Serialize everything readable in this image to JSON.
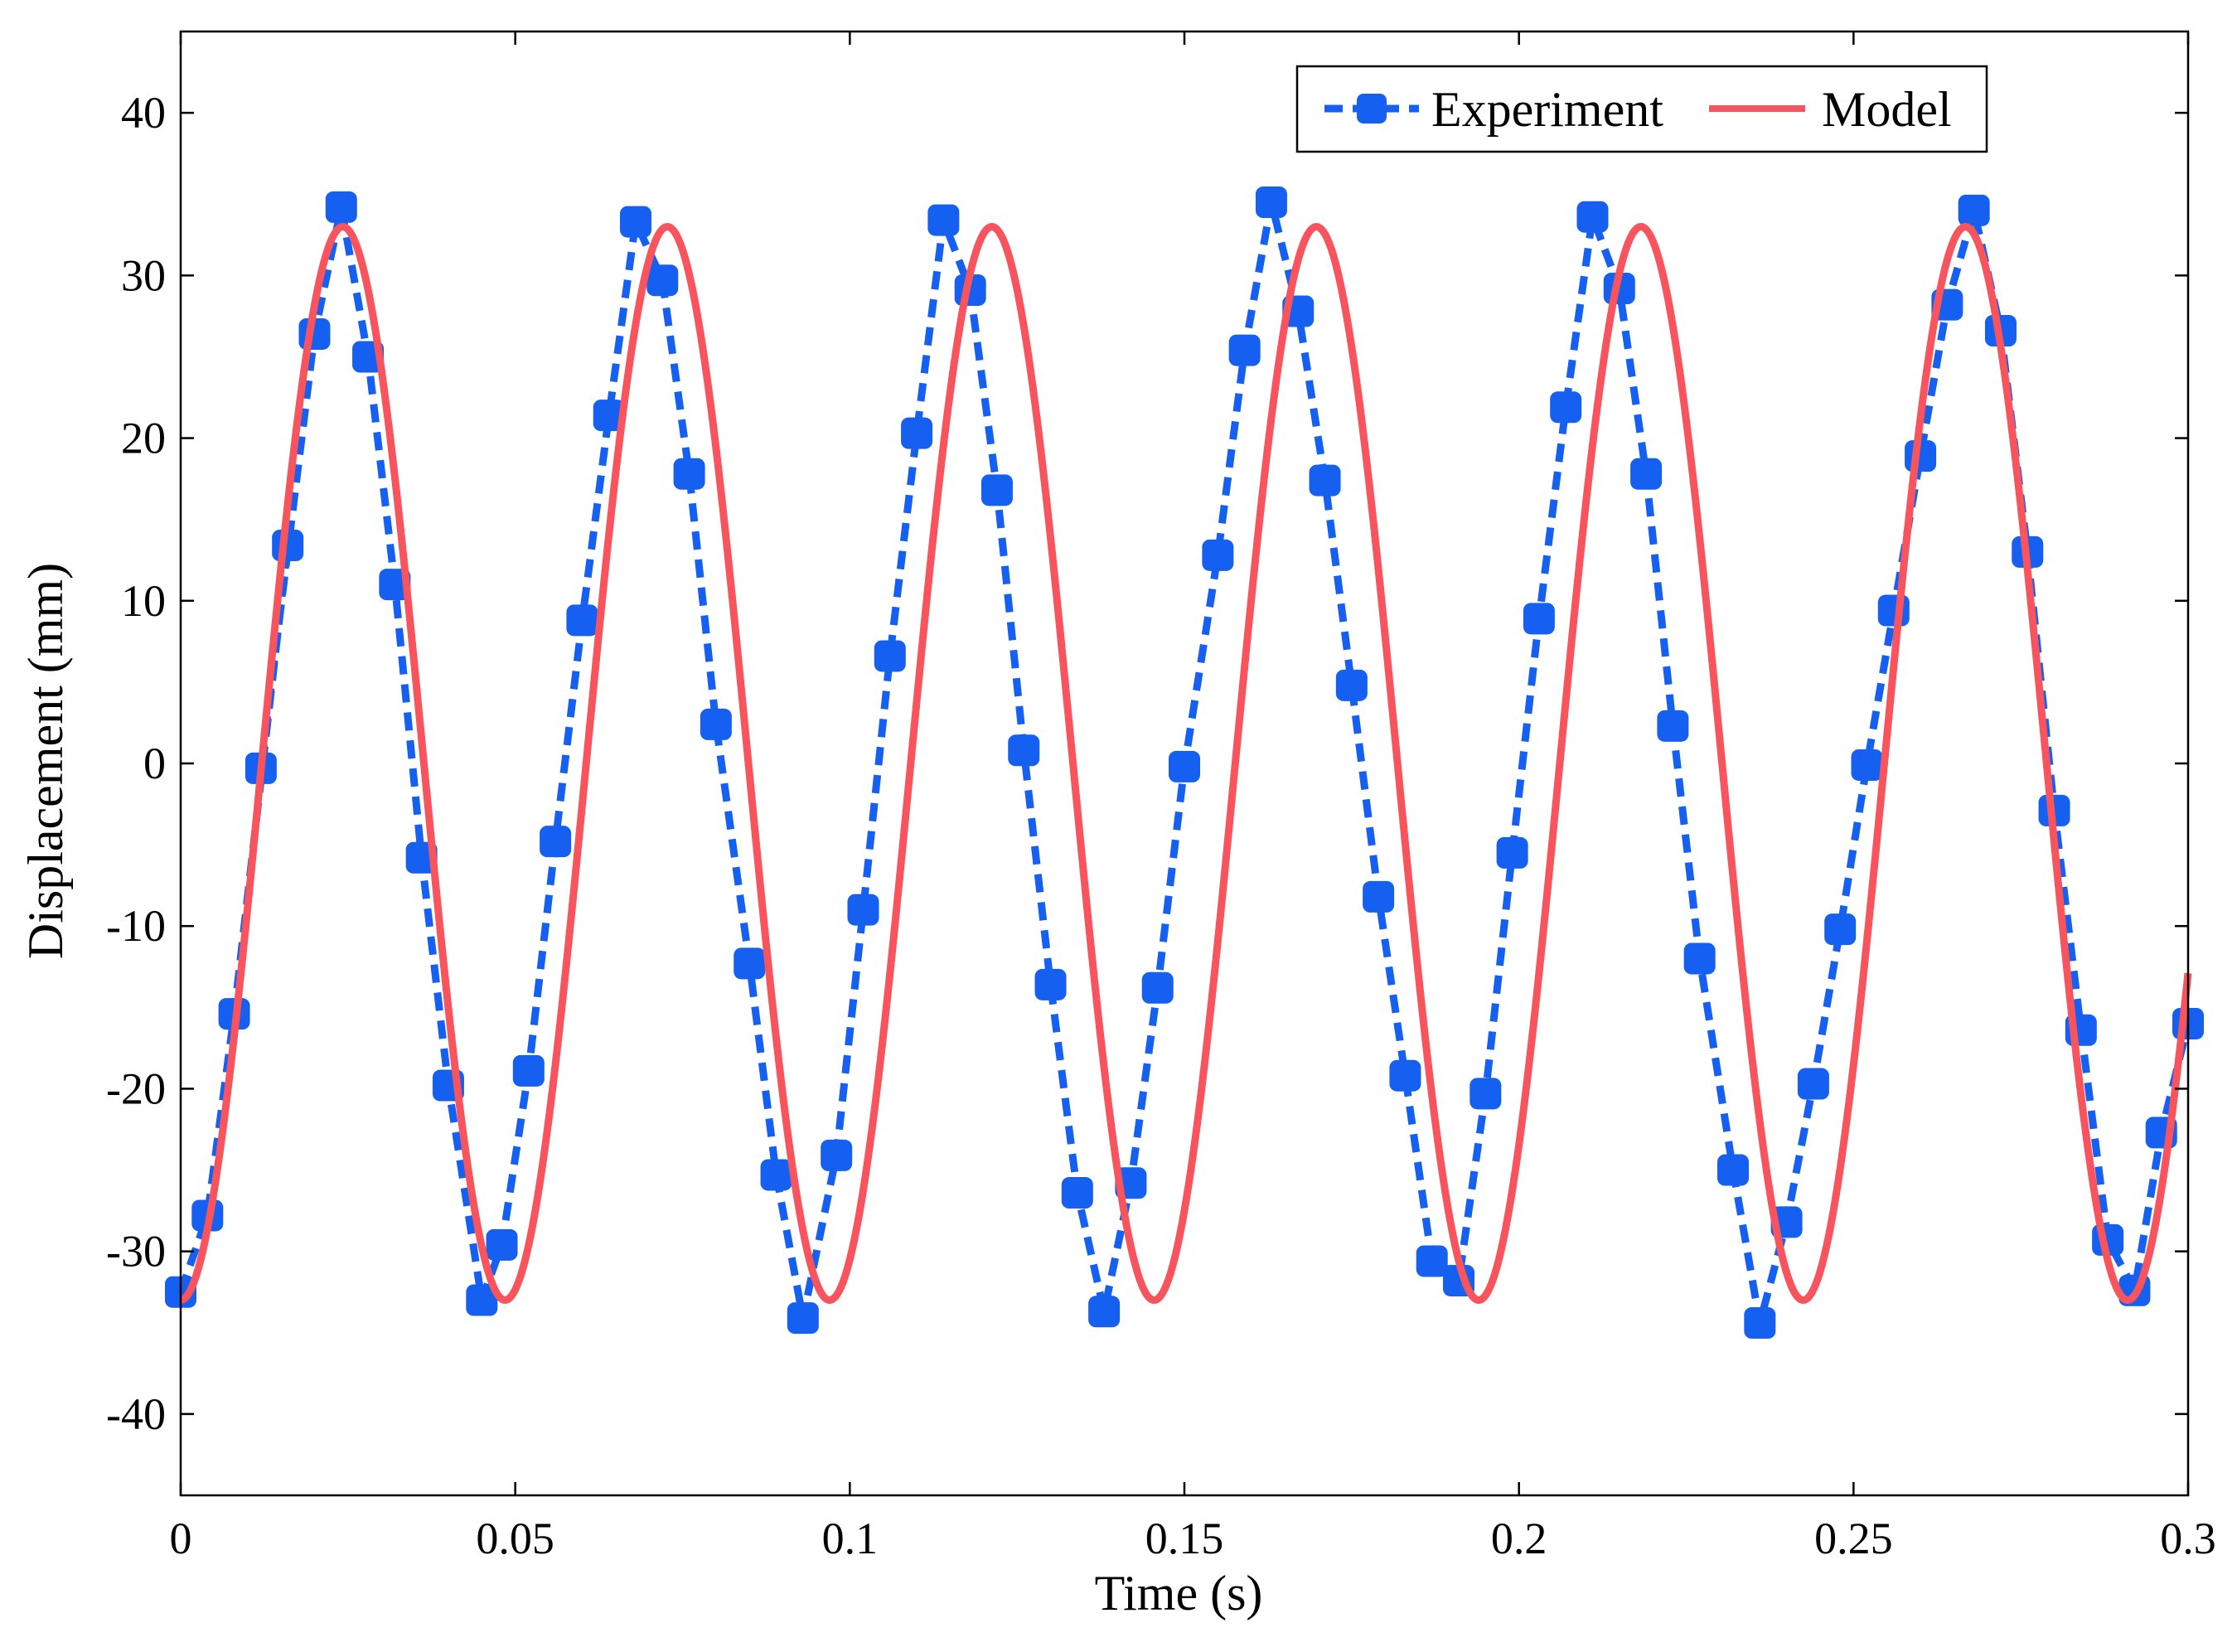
{
  "chart_data": {
    "type": "line",
    "xlabel": "Time (s)",
    "ylabel": "Displacement (mm)",
    "xlim": [
      0,
      0.3
    ],
    "ylim": [
      -45,
      45
    ],
    "x_ticks": [
      0,
      0.05,
      0.1,
      0.15,
      0.2,
      0.25,
      0.3
    ],
    "x_tick_labels": [
      "0",
      "0.05",
      "0.1",
      "0.15",
      "0.2",
      "0.25",
      "0.3"
    ],
    "y_ticks": [
      -40,
      -30,
      -20,
      -10,
      0,
      10,
      20,
      30,
      40
    ],
    "y_tick_labels": [
      "-40",
      "-30",
      "-20",
      "-10",
      "0",
      "10",
      "20",
      "30",
      "40"
    ],
    "grid": false,
    "legend_position": "top-right",
    "series": [
      {
        "name": "Experiment",
        "style": "dashed-square-markers",
        "color": "#1560f0",
        "x": [
          0.0,
          0.004,
          0.008,
          0.016,
          0.012,
          0.02,
          0.024,
          0.028,
          0.032,
          0.036,
          0.04,
          0.045,
          0.048,
          0.052,
          0.056,
          0.06,
          0.064,
          0.068,
          0.072,
          0.076,
          0.08,
          0.085,
          0.089,
          0.093,
          0.098,
          0.102,
          0.106,
          0.11,
          0.114,
          0.118,
          0.122,
          0.126,
          0.13,
          0.134,
          0.138,
          0.142,
          0.146,
          0.15,
          0.155,
          0.159,
          0.163,
          0.167,
          0.171,
          0.175,
          0.179,
          0.183,
          0.187,
          0.191,
          0.195,
          0.199,
          0.203,
          0.207,
          0.211,
          0.215,
          0.219,
          0.223,
          0.227,
          0.232,
          0.236,
          0.24,
          0.244,
          0.248,
          0.252,
          0.256,
          0.26,
          0.264,
          0.268,
          0.272,
          0.276,
          0.28,
          0.284,
          0.288,
          0.292,
          0.296,
          0.3
        ],
        "y": [
          -32.5,
          -27.8,
          -15.4,
          13.4,
          -0.3,
          26.4,
          34.2,
          25.0,
          11.0,
          -5.8,
          -19.8,
          -33.0,
          -29.6,
          -18.9,
          -4.8,
          8.8,
          21.4,
          33.3,
          29.7,
          17.8,
          2.4,
          -12.3,
          -25.3,
          -34.1,
          -24.1,
          -9.0,
          6.6,
          20.3,
          33.4,
          29.1,
          16.8,
          0.8,
          -13.6,
          -26.4,
          -33.7,
          -25.8,
          -13.8,
          -0.2,
          12.8,
          25.4,
          34.5,
          27.8,
          17.4,
          4.8,
          -8.2,
          -19.2,
          -30.6,
          -31.8,
          -20.3,
          -5.5,
          8.9,
          21.9,
          33.6,
          29.2,
          17.8,
          2.3,
          -12.0,
          -25.0,
          -34.4,
          -28.2,
          -19.7,
          -10.2,
          -0.1,
          9.4,
          18.9,
          28.2,
          34.0,
          26.6,
          13.0,
          -2.9,
          -16.4,
          -29.3,
          -32.4,
          -22.7,
          -16.0
        ]
      },
      {
        "name": "Model",
        "style": "solid",
        "color": "#f7545e",
        "amplitude": 33,
        "period": 0.0485,
        "phase_shift": 0.0121,
        "y_at_x0": -33
      }
    ]
  }
}
